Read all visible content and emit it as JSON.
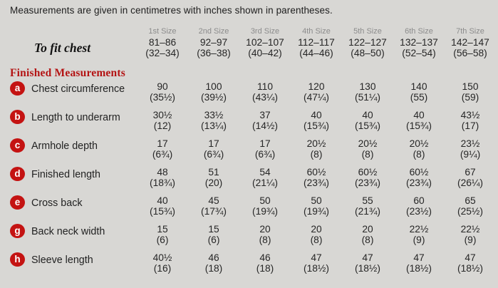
{
  "intro": "Measurements are given in centimetres with inches shown in parentheses.",
  "section_title": "Finished Measurements",
  "size_headers": [
    "1st Size",
    "2nd Size",
    "3rd Size",
    "4th Size",
    "5th Size",
    "6th Size",
    "7th Size"
  ],
  "to_fit_chest": {
    "label": "To fit chest",
    "values": [
      {
        "cm": "81–86",
        "in": "(32–34)"
      },
      {
        "cm": "92–97",
        "in": "(36–38)"
      },
      {
        "cm": "102–107",
        "in": "(40–42)"
      },
      {
        "cm": "112–117",
        "in": "(44–46)"
      },
      {
        "cm": "122–127",
        "in": "(48–50)"
      },
      {
        "cm": "132–137",
        "in": "(52–54)"
      },
      {
        "cm": "142–147",
        "in": "(56–58)"
      }
    ]
  },
  "rows": [
    {
      "key": "a",
      "label": "Chest circumference",
      "values": [
        {
          "cm": "90",
          "in": "(35½)"
        },
        {
          "cm": "100",
          "in": "(39½)"
        },
        {
          "cm": "110",
          "in": "(43¼)"
        },
        {
          "cm": "120",
          "in": "(47¼)"
        },
        {
          "cm": "130",
          "in": "(51¼)"
        },
        {
          "cm": "140",
          "in": "(55)"
        },
        {
          "cm": "150",
          "in": "(59)"
        }
      ]
    },
    {
      "key": "b",
      "label": "Length to underarm",
      "values": [
        {
          "cm": "30½",
          "in": "(12)"
        },
        {
          "cm": "33½",
          "in": "(13¼)"
        },
        {
          "cm": "37",
          "in": "(14½)"
        },
        {
          "cm": "40",
          "in": "(15¾)"
        },
        {
          "cm": "40",
          "in": "(15¾)"
        },
        {
          "cm": "40",
          "in": "(15¾)"
        },
        {
          "cm": "43½",
          "in": "(17)"
        }
      ]
    },
    {
      "key": "c",
      "label": "Armhole depth",
      "values": [
        {
          "cm": "17",
          "in": "(6¾)"
        },
        {
          "cm": "17",
          "in": "(6¾)"
        },
        {
          "cm": "17",
          "in": "(6¾)"
        },
        {
          "cm": "20½",
          "in": "(8)"
        },
        {
          "cm": "20½",
          "in": "(8)"
        },
        {
          "cm": "20½",
          "in": "(8)"
        },
        {
          "cm": "23½",
          "in": "(9¼)"
        }
      ]
    },
    {
      "key": "d",
      "label": "Finished length",
      "values": [
        {
          "cm": "48",
          "in": "(18¾)"
        },
        {
          "cm": "51",
          "in": "(20)"
        },
        {
          "cm": "54",
          "in": "(21¼)"
        },
        {
          "cm": "60½",
          "in": "(23¾)"
        },
        {
          "cm": "60½",
          "in": "(23¾)"
        },
        {
          "cm": "60½",
          "in": "(23¾)"
        },
        {
          "cm": "67",
          "in": "(26¼)"
        }
      ]
    },
    {
      "key": "e",
      "label": "Cross back",
      "values": [
        {
          "cm": "40",
          "in": "(15¾)"
        },
        {
          "cm": "45",
          "in": "(17¾)"
        },
        {
          "cm": "50",
          "in": "(19¾)"
        },
        {
          "cm": "50",
          "in": "(19¾)"
        },
        {
          "cm": "55",
          "in": "(21¾)"
        },
        {
          "cm": "60",
          "in": "(23½)"
        },
        {
          "cm": "65",
          "in": "(25½)"
        }
      ]
    },
    {
      "key": "g",
      "label": "Back neck width",
      "values": [
        {
          "cm": "15",
          "in": "(6)"
        },
        {
          "cm": "15",
          "in": "(6)"
        },
        {
          "cm": "20",
          "in": "(8)"
        },
        {
          "cm": "20",
          "in": "(8)"
        },
        {
          "cm": "20",
          "in": "(8)"
        },
        {
          "cm": "22½",
          "in": "(9)"
        },
        {
          "cm": "22½",
          "in": "(9)"
        }
      ]
    },
    {
      "key": "h",
      "label": "Sleeve length",
      "values": [
        {
          "cm": "40½",
          "in": "(16)"
        },
        {
          "cm": "46",
          "in": "(18)"
        },
        {
          "cm": "46",
          "in": "(18)"
        },
        {
          "cm": "47",
          "in": "(18½)"
        },
        {
          "cm": "47",
          "in": "(18½)"
        },
        {
          "cm": "47",
          "in": "(18½)"
        },
        {
          "cm": "47",
          "in": "(18½)"
        }
      ]
    }
  ],
  "colors": {
    "background": "#d8d7d4",
    "badge_red": "#c41312",
    "heading_red": "#b41414",
    "header_gray": "#8c8c8c",
    "text": "#262626"
  }
}
